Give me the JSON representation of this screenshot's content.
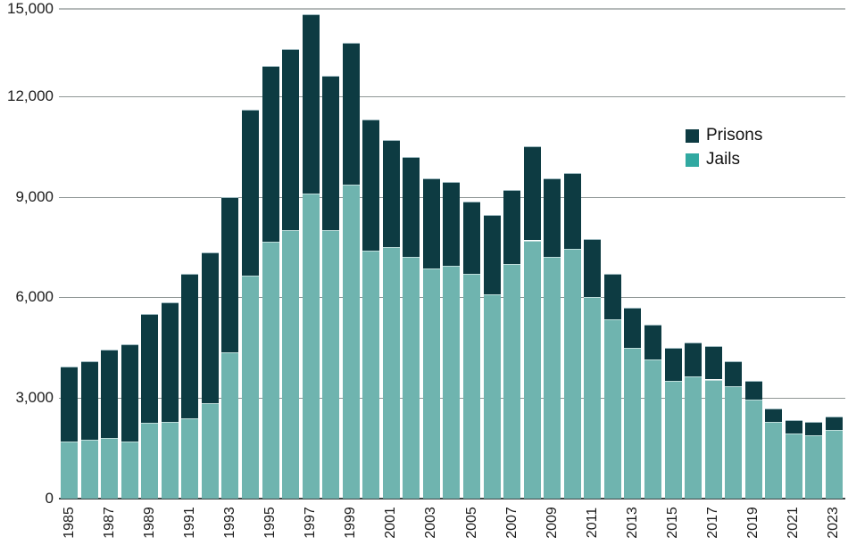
{
  "chart_data": {
    "type": "bar",
    "stacked": true,
    "grid": true,
    "categories": [
      1985,
      1986,
      1987,
      1988,
      1989,
      1990,
      1991,
      1992,
      1993,
      1994,
      1995,
      1996,
      1997,
      1998,
      1999,
      2000,
      2001,
      2002,
      2003,
      2004,
      2005,
      2006,
      2007,
      2008,
      2009,
      2010,
      2011,
      2012,
      2013,
      2014,
      2015,
      2016,
      2017,
      2018,
      2019,
      2020,
      2021,
      2022,
      2023
    ],
    "series": [
      {
        "name": "Prisons",
        "color": "#0d3b42",
        "legend_color": "#0d3b42",
        "values": [
          2250,
          2350,
          2650,
          2900,
          3250,
          3550,
          4300,
          4500,
          4650,
          4950,
          5250,
          5400,
          5350,
          4600,
          4250,
          3900,
          3200,
          3000,
          2700,
          2500,
          2150,
          2350,
          2200,
          2800,
          2350,
          2250,
          1750,
          1350,
          1200,
          1050,
          1000,
          1000,
          1000,
          750,
          550,
          400,
          400,
          400,
          400
        ]
      },
      {
        "name": "Jails",
        "color": "#6fb4af",
        "legend_color": "#31a9a1",
        "values": [
          1700,
          1750,
          1800,
          1700,
          2250,
          2300,
          2400,
          2850,
          4350,
          6650,
          7650,
          8000,
          9100,
          8000,
          9350,
          7400,
          7500,
          7200,
          6850,
          6950,
          6700,
          6100,
          7000,
          7700,
          7200,
          7450,
          6000,
          5350,
          4500,
          4150,
          3500,
          3650,
          3550,
          3350,
          2950,
          2300,
          1950,
          1900,
          2050
        ]
      }
    ],
    "ylim": [
      0,
      15000
    ],
    "yticks": [
      {
        "value": 15000,
        "label": "15,000"
      },
      {
        "value": 12000,
        "label": "12,000"
      },
      {
        "value": 9000,
        "label": "9,000"
      },
      {
        "value": 6000,
        "label": "6,000"
      },
      {
        "value": 3000,
        "label": "3,000"
      },
      {
        "value": 0,
        "label": "0"
      }
    ],
    "xticks": [
      "1985",
      "1987",
      "1989",
      "1991",
      "1993",
      "1995",
      "1997",
      "1999",
      "2001",
      "2003",
      "2005",
      "2007",
      "2009",
      "2011",
      "2013",
      "2015",
      "2017",
      "2019",
      "2021",
      "2023"
    ],
    "legend_position": "upper-right"
  },
  "colors": {
    "grid": "#8f9695",
    "grid_top": "#b5bab9",
    "axis": "#3e4646",
    "text": "#1c1c1c",
    "background": "#ffffff"
  }
}
